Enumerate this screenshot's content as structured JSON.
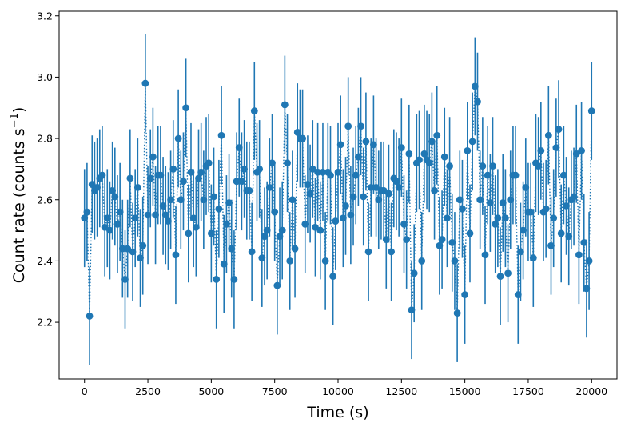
{
  "chart_data": {
    "type": "scatter",
    "xlabel": "Time (s)",
    "ylabel": "Count rate (counts s",
    "ylabel_superscript": "−1",
    "ylabel_suffix": ")",
    "xlim": [
      -1000,
      21000
    ],
    "ylim": [
      2.015,
      3.215
    ],
    "xticks": [
      0,
      2500,
      5000,
      7500,
      10000,
      12500,
      15000,
      17500,
      20000
    ],
    "yticks": [
      2.2,
      2.4,
      2.6,
      2.8,
      3.0,
      3.2
    ],
    "xtick_labels": [
      "0",
      "2500",
      "5000",
      "7500",
      "10000",
      "12500",
      "15000",
      "17500",
      "20000"
    ],
    "ytick_labels": [
      "2.2",
      "2.4",
      "2.6",
      "2.8",
      "3.0",
      "3.2"
    ],
    "grid": false,
    "legend": "none",
    "marker_color": "#1f77b4",
    "error_bar": 0.16,
    "connector_style": "dotted",
    "x_start": 0,
    "x_step": 100,
    "y": [
      2.54,
      2.56,
      2.22,
      2.65,
      2.63,
      2.64,
      2.67,
      2.68,
      2.51,
      2.54,
      2.5,
      2.63,
      2.61,
      2.52,
      2.56,
      2.44,
      2.34,
      2.44,
      2.67,
      2.43,
      2.54,
      2.64,
      2.41,
      2.45,
      2.98,
      2.55,
      2.67,
      2.74,
      2.55,
      2.68,
      2.68,
      2.58,
      2.55,
      2.53,
      2.6,
      2.7,
      2.42,
      2.8,
      2.6,
      2.66,
      2.9,
      2.49,
      2.69,
      2.54,
      2.51,
      2.67,
      2.69,
      2.6,
      2.71,
      2.72,
      2.49,
      2.61,
      2.34,
      2.57,
      2.81,
      2.39,
      2.52,
      2.59,
      2.44,
      2.34,
      2.66,
      2.77,
      2.66,
      2.7,
      2.63,
      2.63,
      2.43,
      2.89,
      2.69,
      2.7,
      2.41,
      2.48,
      2.5,
      2.64,
      2.72,
      2.56,
      2.32,
      2.48,
      2.5,
      2.91,
      2.72,
      2.4,
      2.6,
      2.44,
      2.82,
      2.8,
      2.8,
      2.52,
      2.65,
      2.62,
      2.7,
      2.51,
      2.69,
      2.5,
      2.69,
      2.4,
      2.69,
      2.68,
      2.35,
      2.53,
      2.69,
      2.78,
      2.54,
      2.58,
      2.84,
      2.55,
      2.61,
      2.68,
      2.74,
      2.84,
      2.61,
      2.79,
      2.43,
      2.64,
      2.78,
      2.64,
      2.6,
      2.63,
      2.63,
      2.47,
      2.62,
      2.43,
      2.67,
      2.66,
      2.64,
      2.77,
      2.52,
      2.47,
      2.75,
      2.24,
      2.36,
      2.72,
      2.73,
      2.4,
      2.75,
      2.73,
      2.72,
      2.79,
      2.63,
      2.81,
      2.45,
      2.47,
      2.74,
      2.54,
      2.71,
      2.46,
      2.4,
      2.23,
      2.6,
      2.57,
      2.29,
      2.76,
      2.49,
      2.79,
      2.97,
      2.92,
      2.6,
      2.71,
      2.42,
      2.68,
      2.59,
      2.71,
      2.52,
      2.54,
      2.35,
      2.59,
      2.54,
      2.36,
      2.6,
      2.68,
      2.68,
      2.29,
      2.43,
      2.5,
      2.64,
      2.56,
      2.56,
      2.41,
      2.72,
      2.71,
      2.76,
      2.56,
      2.57,
      2.81,
      2.45,
      2.54,
      2.77,
      2.83,
      2.49,
      2.68,
      2.58,
      2.48,
      2.6,
      2.61,
      2.75,
      2.42,
      2.76,
      2.46,
      2.31,
      2.4,
      2.89
    ]
  }
}
